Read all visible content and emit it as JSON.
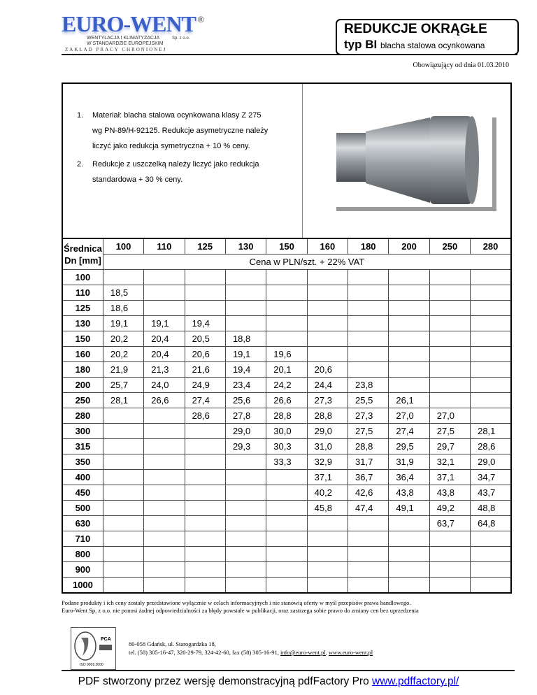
{
  "header": {
    "logo": {
      "name": "EURO-WENT",
      "registered": "®",
      "line1": "WENTYLACJA I KLIMATYZACJA",
      "line2": "W STANDARDZIE EUROPEJSKIM",
      "company_suffix": "Sp. z o.o.",
      "tagline": "ZAKŁAD PRACY CHRONIONEJ",
      "color": "#3a5fc8"
    },
    "title": "REDUKCJE OKRĄGŁE",
    "type": "typ BI",
    "material": "blacha stalowa ocynkowana",
    "valid_from": "Obowiązujący od dnia 01.03.2010"
  },
  "notes": [
    {
      "num": "1.",
      "lines": [
        "Materiał: blacha stalowa ocynkowana klasy Z 275",
        "wg PN-89/H-92125. Redukcje asymetryczne należy",
        "liczyć jako redukcja symetryczna + 10 % ceny."
      ]
    },
    {
      "num": "2.",
      "lines": [
        "Redukcje z uszczelką należy liczyć jako redukcja",
        "standardowa + 30 % ceny."
      ]
    }
  ],
  "table": {
    "corner": [
      "Średnica",
      "Dn [mm]"
    ],
    "columns": [
      "100",
      "110",
      "125",
      "130",
      "150",
      "160",
      "180",
      "200",
      "250",
      "280"
    ],
    "subheader": "Cena w PLN/szt. + 22% VAT",
    "rows": [
      {
        "dn": "100",
        "v": [
          "",
          "",
          "",
          "",
          "",
          "",
          "",
          "",
          "",
          ""
        ]
      },
      {
        "dn": "110",
        "v": [
          "18,5",
          "",
          "",
          "",
          "",
          "",
          "",
          "",
          "",
          ""
        ]
      },
      {
        "dn": "125",
        "v": [
          "18,6",
          "",
          "",
          "",
          "",
          "",
          "",
          "",
          "",
          ""
        ]
      },
      {
        "dn": "130",
        "v": [
          "19,1",
          "19,1",
          "19,4",
          "",
          "",
          "",
          "",
          "",
          "",
          ""
        ]
      },
      {
        "dn": "150",
        "v": [
          "20,2",
          "20,4",
          "20,5",
          "18,8",
          "",
          "",
          "",
          "",
          "",
          ""
        ]
      },
      {
        "dn": "160",
        "v": [
          "20,2",
          "20,4",
          "20,6",
          "19,1",
          "19,6",
          "",
          "",
          "",
          "",
          ""
        ]
      },
      {
        "dn": "180",
        "v": [
          "21,9",
          "21,3",
          "21,6",
          "19,4",
          "20,1",
          "20,6",
          "",
          "",
          "",
          ""
        ]
      },
      {
        "dn": "200",
        "v": [
          "25,7",
          "24,0",
          "24,9",
          "23,4",
          "24,2",
          "24,4",
          "23,8",
          "",
          "",
          ""
        ]
      },
      {
        "dn": "250",
        "v": [
          "28,1",
          "26,6",
          "27,4",
          "25,6",
          "26,6",
          "27,3",
          "25,5",
          "26,1",
          "",
          ""
        ]
      },
      {
        "dn": "280",
        "v": [
          "",
          "",
          "28,6",
          "27,8",
          "28,8",
          "28,8",
          "27,3",
          "27,0",
          "27,0",
          ""
        ]
      },
      {
        "dn": "300",
        "v": [
          "",
          "",
          "",
          "29,0",
          "30,0",
          "29,0",
          "27,5",
          "27,4",
          "27,5",
          "28,1"
        ]
      },
      {
        "dn": "315",
        "v": [
          "",
          "",
          "",
          "29,3",
          "30,3",
          "31,0",
          "28,8",
          "29,5",
          "29,7",
          "28,6"
        ]
      },
      {
        "dn": "350",
        "v": [
          "",
          "",
          "",
          "",
          "33,3",
          "32,9",
          "31,7",
          "31,9",
          "32,1",
          "29,0"
        ]
      },
      {
        "dn": "400",
        "v": [
          "",
          "",
          "",
          "",
          "",
          "37,1",
          "36,7",
          "36,4",
          "37,1",
          "34,7"
        ]
      },
      {
        "dn": "450",
        "v": [
          "",
          "",
          "",
          "",
          "",
          "40,2",
          "42,6",
          "43,8",
          "43,8",
          "43,7"
        ]
      },
      {
        "dn": "500",
        "v": [
          "",
          "",
          "",
          "",
          "",
          "45,8",
          "47,4",
          "49,1",
          "49,2",
          "48,8"
        ]
      },
      {
        "dn": "630",
        "v": [
          "",
          "",
          "",
          "",
          "",
          "",
          "",
          "",
          "63,7",
          "64,8"
        ]
      },
      {
        "dn": "710",
        "v": [
          "",
          "",
          "",
          "",
          "",
          "",
          "",
          "",
          "",
          ""
        ]
      },
      {
        "dn": "800",
        "v": [
          "",
          "",
          "",
          "",
          "",
          "",
          "",
          "",
          "",
          ""
        ]
      },
      {
        "dn": "900",
        "v": [
          "",
          "",
          "",
          "",
          "",
          "",
          "",
          "",
          "",
          ""
        ]
      },
      {
        "dn": "1000",
        "v": [
          "",
          "",
          "",
          "",
          "",
          "",
          "",
          "",
          "",
          ""
        ]
      }
    ]
  },
  "footer": {
    "disclaimer": [
      "Podane produkty i ich ceny zostały przedstawione wyłącznie w celach informacyjnych i nie stanowią oferty w myśl przepisów prawa handlowego.",
      "Euro-Went Sp. z o.o. nie ponosi żadnej odpowiedzialności za błędy powstałe w publikacji, oraz zastrzega sobie prawo do zmiany cen bez uprzedzenia"
    ],
    "cert": {
      "label": "ISO 9001:2000",
      "pca": "PCA"
    },
    "address": "80-058 Gdańsk, ul. Starogardzka 18,",
    "contact_prefix": "tel. (58) 305-16-47, 320-29-79, 324-42-60, fax (58) 305-16-91, ",
    "email": "info@euro-went.pl",
    "sep": ", ",
    "website": "www.euro-went.pl"
  },
  "watermark": {
    "text": "PDF stworzony przez wersję demonstracyjną pdfFactory Pro ",
    "link": "www.pdffactory.pl/",
    "link_color": "#0000ee"
  }
}
